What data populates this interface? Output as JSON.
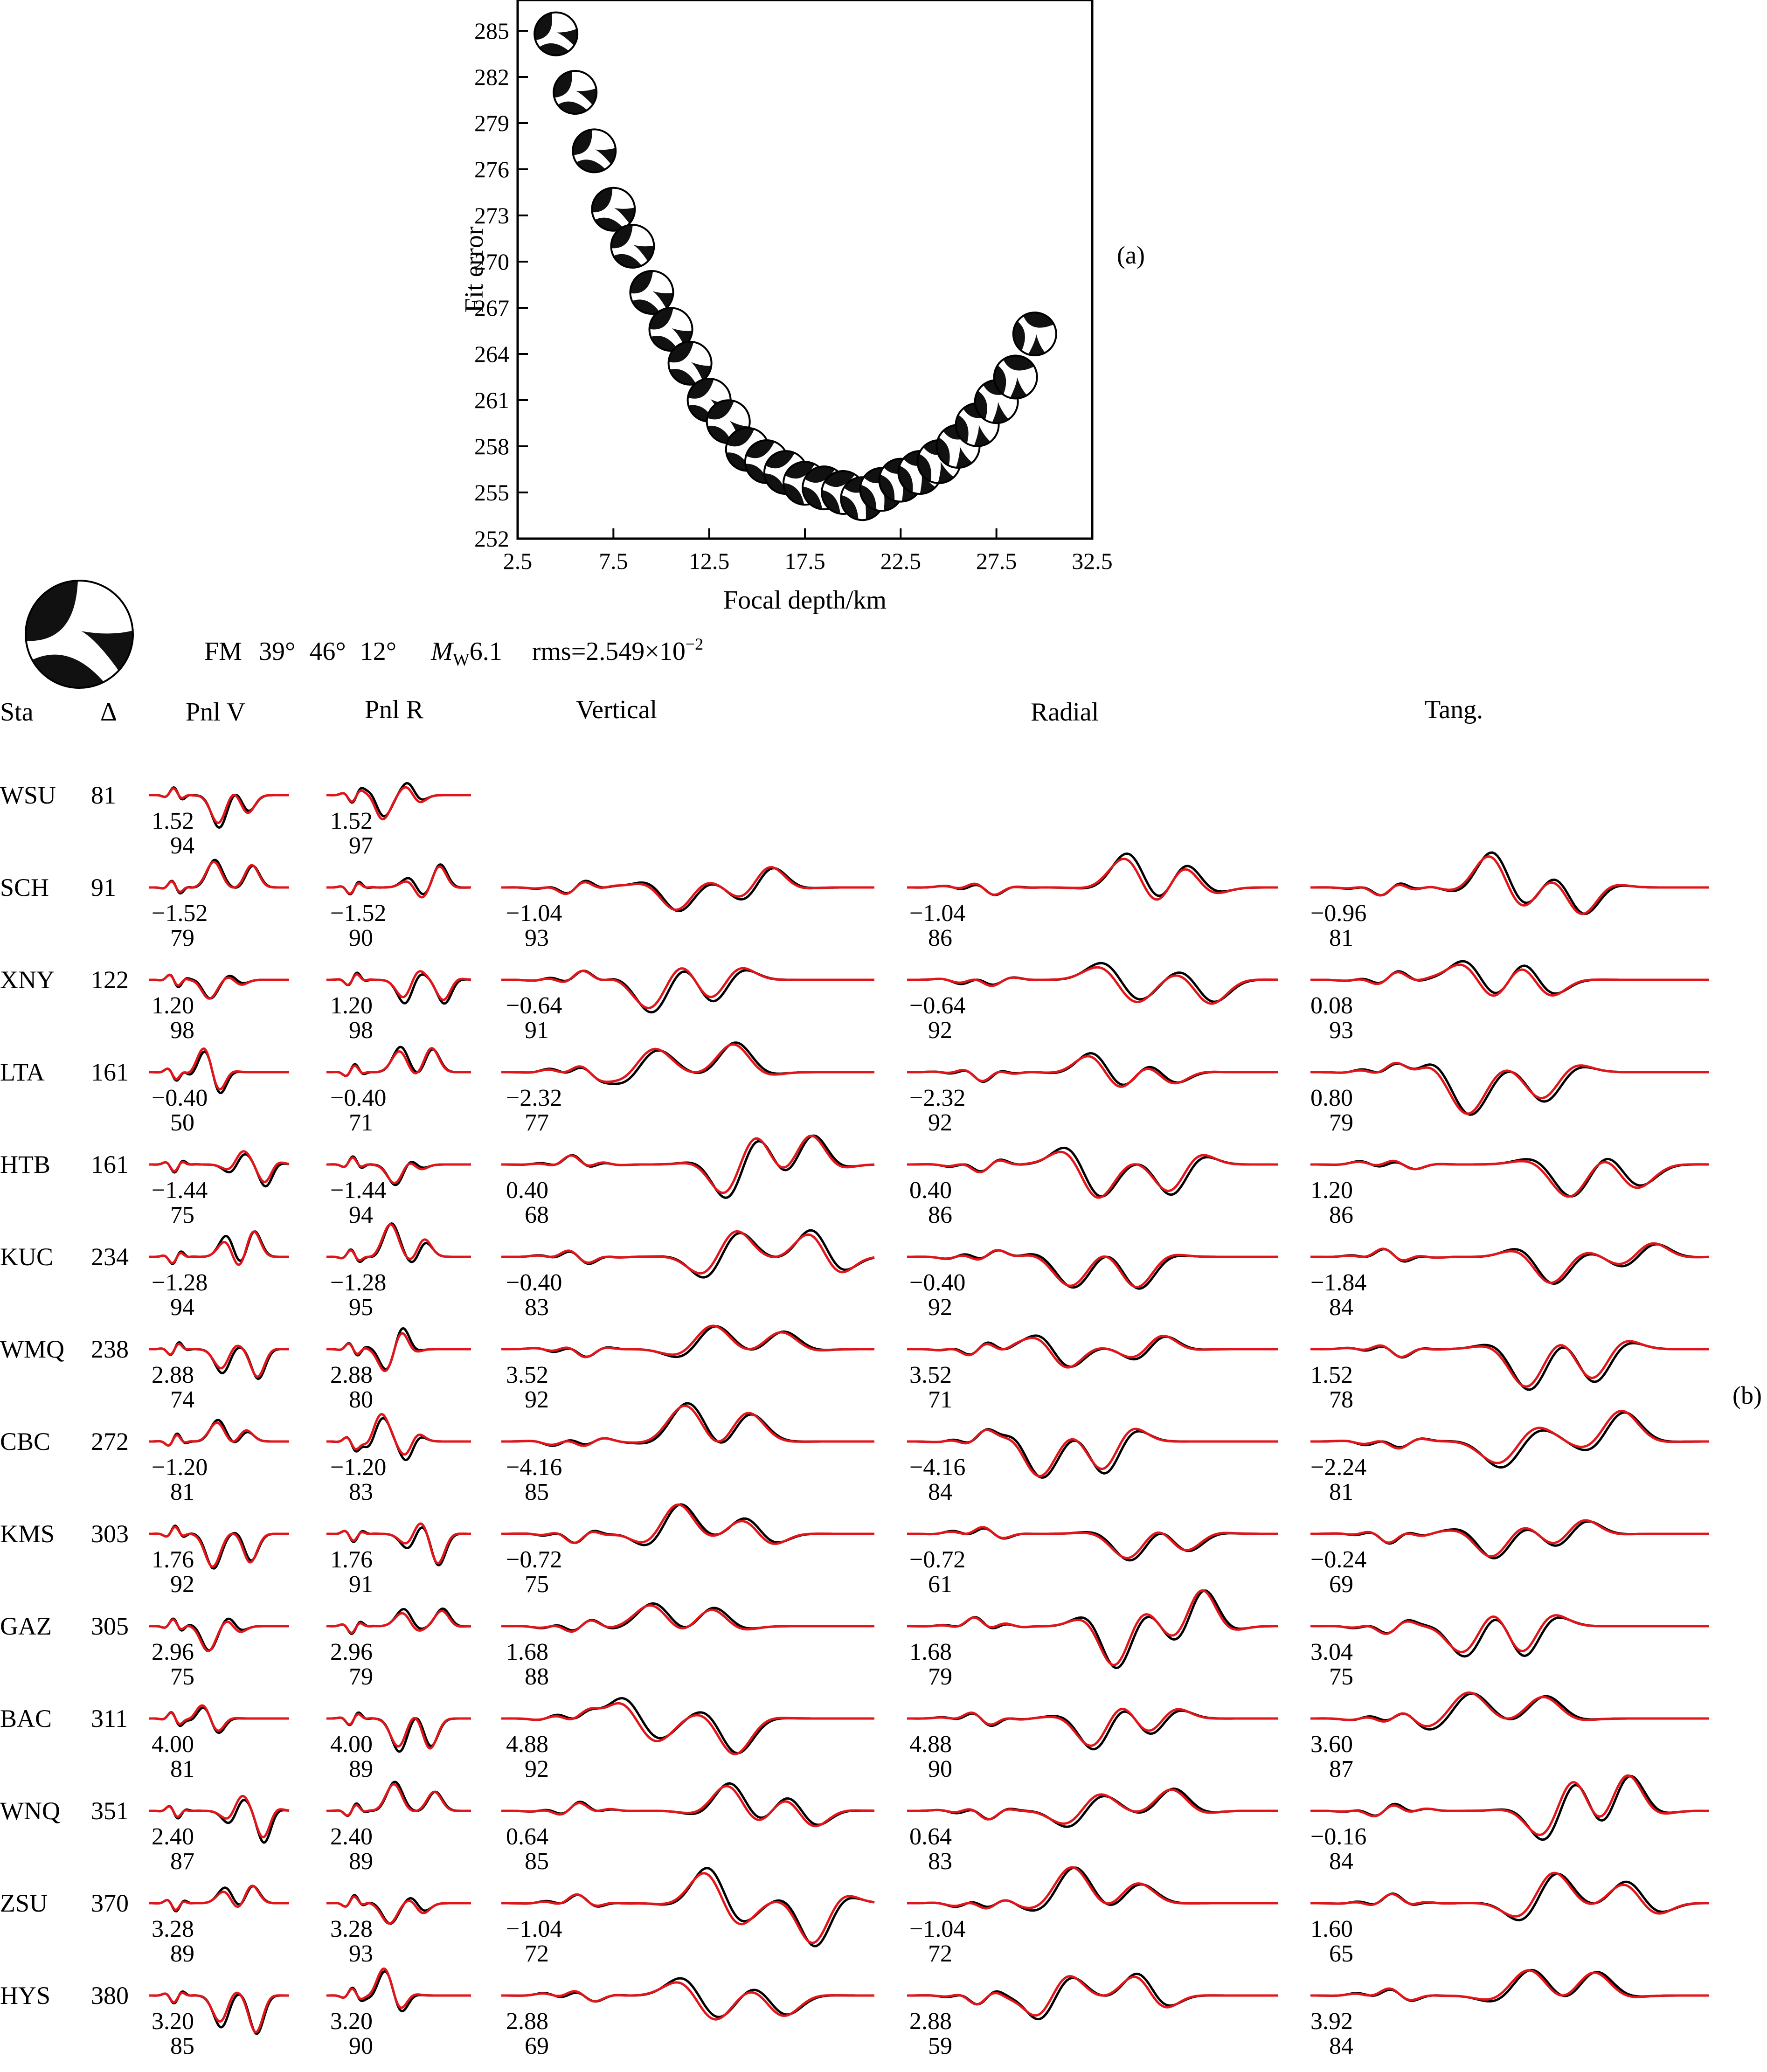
{
  "panel_a": {
    "label": "(a)",
    "chart_data": {
      "type": "scatter",
      "title": "",
      "xlabel": "Focal depth/km",
      "ylabel": "Fit error",
      "xlim": [
        2.5,
        32.5
      ],
      "ylim": [
        252,
        287
      ],
      "xticks": [
        "2.5",
        "7.5",
        "12.5",
        "17.5",
        "22.5",
        "27.5",
        "32.5"
      ],
      "yticks": [
        "252",
        "255",
        "258",
        "261",
        "264",
        "267",
        "270",
        "273",
        "276",
        "279",
        "282",
        "285"
      ],
      "grid": false,
      "marker": "focal-mechanism-beachball",
      "series": [
        {
          "x": [
            4.5,
            5.5,
            6.5,
            7.5,
            8.5,
            9.5,
            10.5,
            11.5,
            12.5,
            13.5,
            14.5,
            15.5,
            16.5,
            17.5,
            18.5,
            19.5,
            20.5,
            21.5,
            22.5,
            23.5,
            24.5,
            25.5,
            26.5,
            27.5,
            28.5,
            29.5
          ],
          "y": [
            284.8,
            281.0,
            277.2,
            273.4,
            271.0,
            268.0,
            265.6,
            263.4,
            261.0,
            259.6,
            257.8,
            257.0,
            256.3,
            255.6,
            255.3,
            255.0,
            254.6,
            255.2,
            255.8,
            256.3,
            257.0,
            258.0,
            259.4,
            260.9,
            262.5,
            265.3
          ]
        }
      ]
    }
  },
  "panel_b": {
    "label": "(b)",
    "fm_label": "FM",
    "fm_strike": "39°",
    "fm_dip": "46°",
    "fm_rake": "12°",
    "mw_symbol": "M",
    "mw_subscript": "W",
    "mw_value": "6.1",
    "rms_prefix": "rms=2.549×10",
    "rms_exponent": "−2",
    "headers": {
      "sta": "Sta",
      "delta": "Δ",
      "pnlv": "Pnl V",
      "pnlr": "Pnl R",
      "vertical": "Vertical",
      "radial": "Radial",
      "tang": "Tang."
    },
    "stations": [
      {
        "sta": "WSU",
        "dist": "81",
        "pnlv": [
          "1.52",
          "94"
        ],
        "pnlr": [
          "1.52",
          "97"
        ],
        "vertical": null,
        "radial": null,
        "tang": null
      },
      {
        "sta": "SCH",
        "dist": "91",
        "pnlv": [
          "−1.52",
          "79"
        ],
        "pnlr": [
          "−1.52",
          "90"
        ],
        "vertical": [
          "−1.04",
          "93"
        ],
        "radial": [
          "−1.04",
          "86"
        ],
        "tang": [
          "−0.96",
          "81"
        ]
      },
      {
        "sta": "XNY",
        "dist": "122",
        "pnlv": [
          "1.20",
          "98"
        ],
        "pnlr": [
          "1.20",
          "98"
        ],
        "vertical": [
          "−0.64",
          "91"
        ],
        "radial": [
          "−0.64",
          "92"
        ],
        "tang": [
          "0.08",
          "93"
        ]
      },
      {
        "sta": "LTA",
        "dist": "161",
        "pnlv": [
          "−0.40",
          "50"
        ],
        "pnlr": [
          "−0.40",
          "71"
        ],
        "vertical": [
          "−2.32",
          "77"
        ],
        "radial": [
          "−2.32",
          "92"
        ],
        "tang": [
          "0.80",
          "79"
        ]
      },
      {
        "sta": "HTB",
        "dist": "161",
        "pnlv": [
          "−1.44",
          "75"
        ],
        "pnlr": [
          "−1.44",
          "94"
        ],
        "vertical": [
          "0.40",
          "68"
        ],
        "radial": [
          "0.40",
          "86"
        ],
        "tang": [
          "1.20",
          "86"
        ]
      },
      {
        "sta": "KUC",
        "dist": "234",
        "pnlv": [
          "−1.28",
          "94"
        ],
        "pnlr": [
          "−1.28",
          "95"
        ],
        "vertical": [
          "−0.40",
          "83"
        ],
        "radial": [
          "−0.40",
          "92"
        ],
        "tang": [
          "−1.84",
          "84"
        ]
      },
      {
        "sta": "WMQ",
        "dist": "238",
        "pnlv": [
          "2.88",
          "74"
        ],
        "pnlr": [
          "2.88",
          "80"
        ],
        "vertical": [
          "3.52",
          "92"
        ],
        "radial": [
          "3.52",
          "71"
        ],
        "tang": [
          "1.52",
          "78"
        ]
      },
      {
        "sta": "CBC",
        "dist": "272",
        "pnlv": [
          "−1.20",
          "81"
        ],
        "pnlr": [
          "−1.20",
          "83"
        ],
        "vertical": [
          "−4.16",
          "85"
        ],
        "radial": [
          "−4.16",
          "84"
        ],
        "tang": [
          "−2.24",
          "81"
        ]
      },
      {
        "sta": "KMS",
        "dist": "303",
        "pnlv": [
          "1.76",
          "92"
        ],
        "pnlr": [
          "1.76",
          "91"
        ],
        "vertical": [
          "−0.72",
          "75"
        ],
        "radial": [
          "−0.72",
          "61"
        ],
        "tang": [
          "−0.24",
          "69"
        ]
      },
      {
        "sta": "GAZ",
        "dist": "305",
        "pnlv": [
          "2.96",
          "75"
        ],
        "pnlr": [
          "2.96",
          "79"
        ],
        "vertical": [
          "1.68",
          "88"
        ],
        "radial": [
          "1.68",
          "79"
        ],
        "tang": [
          "3.04",
          "75"
        ]
      },
      {
        "sta": "BAC",
        "dist": "311",
        "pnlv": [
          "4.00",
          "81"
        ],
        "pnlr": [
          "4.00",
          "89"
        ],
        "vertical": [
          "4.88",
          "92"
        ],
        "radial": [
          "4.88",
          "90"
        ],
        "tang": [
          "3.60",
          "87"
        ]
      },
      {
        "sta": "WNQ",
        "dist": "351",
        "pnlv": [
          "2.40",
          "87"
        ],
        "pnlr": [
          "2.40",
          "89"
        ],
        "vertical": [
          "0.64",
          "85"
        ],
        "radial": [
          "0.64",
          "83"
        ],
        "tang": [
          "−0.16",
          "84"
        ]
      },
      {
        "sta": "ZSU",
        "dist": "370",
        "pnlv": [
          "3.28",
          "89"
        ],
        "pnlr": [
          "3.28",
          "93"
        ],
        "vertical": [
          "−1.04",
          "72"
        ],
        "radial": [
          "−1.04",
          "72"
        ],
        "tang": [
          "1.60",
          "65"
        ]
      },
      {
        "sta": "HYS",
        "dist": "380",
        "pnlv": [
          "3.20",
          "85"
        ],
        "pnlr": [
          "3.20",
          "90"
        ],
        "vertical": [
          "2.88",
          "69"
        ],
        "radial": [
          "2.88",
          "59"
        ],
        "tang": [
          "3.92",
          "84"
        ]
      }
    ],
    "colors": {
      "observed": "#000000",
      "synthetic": "#e3151a"
    }
  }
}
